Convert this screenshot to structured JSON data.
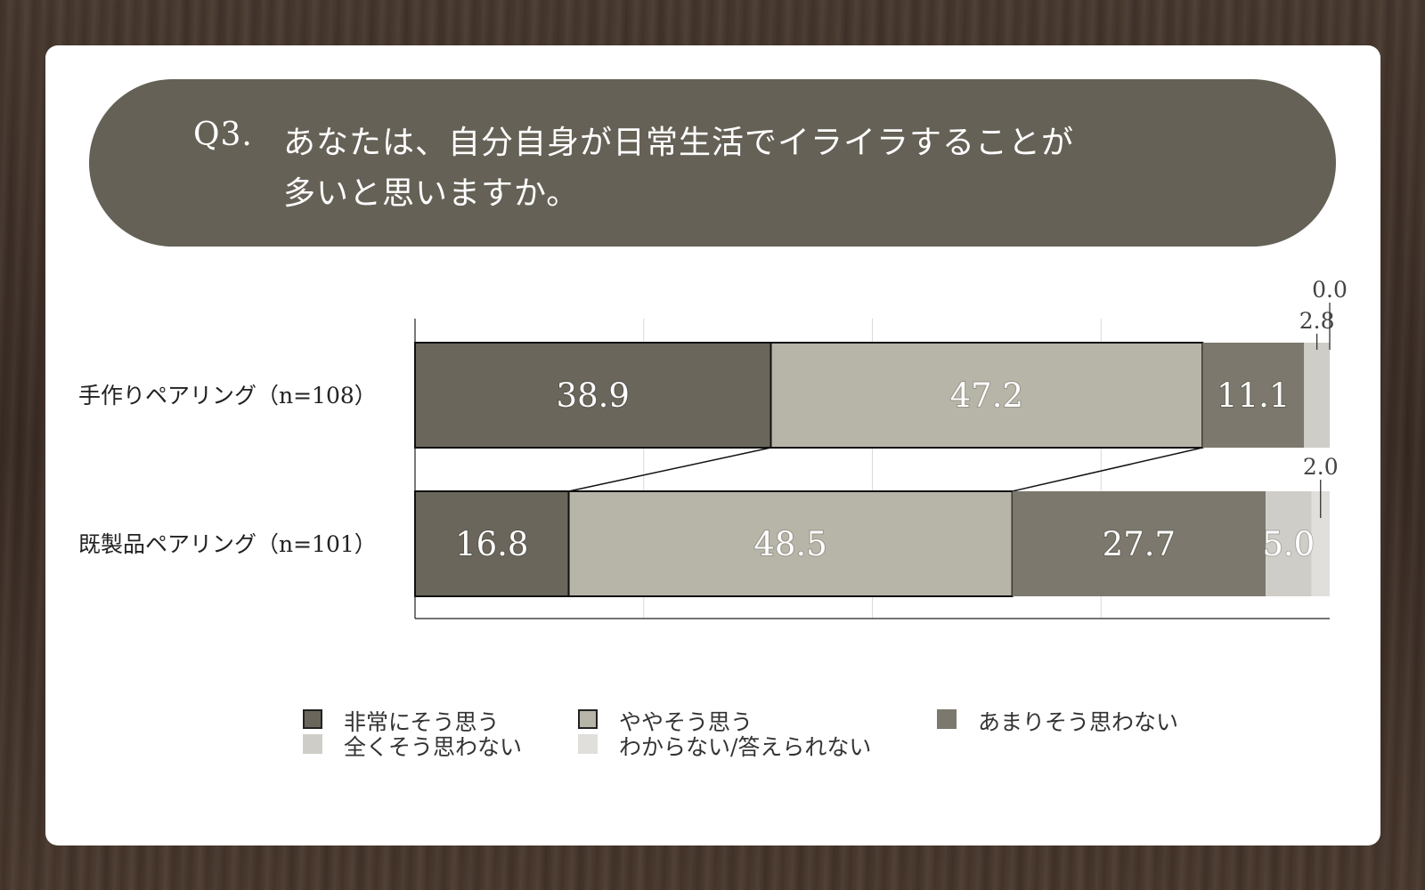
{
  "title": {
    "number": "Q3.",
    "line1": "あなたは、自分自身が日常生活でイライラすることが",
    "line2": "多いと思いますか。"
  },
  "colors": {
    "title_bg": "#656156",
    "series": [
      "#6a665c",
      "#b7b4a8",
      "#7c786d",
      "#cfcdc7",
      "#e0dfdb"
    ]
  },
  "chart_data": {
    "type": "bar",
    "orientation": "horizontal",
    "stacked": true,
    "normalized": true,
    "xlim": [
      0,
      100
    ],
    "categories": [
      "手作りペアリング（n=108）",
      "既製品ペアリング（n=101）"
    ],
    "series": [
      {
        "name": "非常にそう思う",
        "values": [
          38.9,
          16.8
        ]
      },
      {
        "name": "ややそう思う",
        "values": [
          47.2,
          48.5
        ]
      },
      {
        "name": "あまりそう思わない",
        "values": [
          11.1,
          27.7
        ]
      },
      {
        "name": "全くそう思わない",
        "values": [
          2.8,
          5.0
        ]
      },
      {
        "name": "わからない/答えられない",
        "values": [
          0.0,
          2.0
        ]
      }
    ],
    "data_labels": [
      [
        "38.9",
        "47.2",
        "11.1",
        "2.8",
        "0.0"
      ],
      [
        "16.8",
        "48.5",
        "27.7",
        "5.0",
        "2.0"
      ]
    ],
    "grid": true,
    "legend_position": "bottom",
    "connector_lines": true
  }
}
